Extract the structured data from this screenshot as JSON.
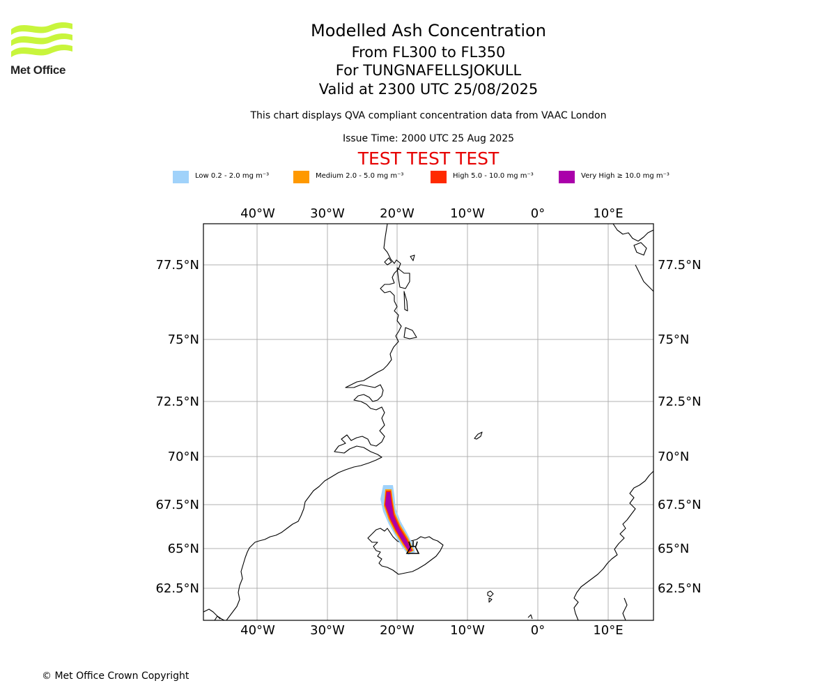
{
  "logo": {
    "text": "Met Office"
  },
  "header": {
    "title": "Modelled Ash Concentration",
    "levels": "From FL300 to FL350",
    "volcano": "For TUNGNAFELLSJOKULL",
    "valid": "Valid at 2300 UTC 25/08/2025",
    "subtitle": "This chart displays QVA compliant concentration data from VAAC London",
    "issue": "Issue Time: 2000 UTC 25 Aug 2025",
    "test_banner": "TEST TEST TEST"
  },
  "legend": [
    {
      "label": "Low 0.2 - 2.0 mg m⁻³",
      "color": "#a0d2fa"
    },
    {
      "label": "Medium 2.0 - 5.0 mg m⁻³",
      "color": "#ff9900"
    },
    {
      "label": "High 5.0 - 10.0 mg m⁻³",
      "color": "#ff2a00"
    },
    {
      "label": "Very High ≥ 10.0 mg m⁻³",
      "color": "#aa00aa"
    }
  ],
  "map": {
    "lon_labels_top": [
      "40°W",
      "30°W",
      "20°W",
      "10°W",
      "0°",
      "10°E"
    ],
    "lon_labels_bottom": [
      "40°W",
      "30°W",
      "20°W",
      "10°W",
      "0°",
      "10°E"
    ],
    "lat_labels_left": [
      "77.5°N",
      "75°N",
      "72.5°N",
      "70°N",
      "67.5°N",
      "65°N",
      "62.5°N"
    ],
    "lat_labels_right": [
      "77.5°N",
      "75°N",
      "72.5°N",
      "70°N",
      "67.5°N",
      "65°N",
      "62.5°N"
    ],
    "volcano_symbol": "volcano-icon",
    "plume_colors": {
      "low": "#a0d2fa",
      "medium": "#ff9900",
      "high": "#ff2a00",
      "very_high": "#aa00aa"
    }
  },
  "footer": {
    "copyright": "© Met Office Crown Copyright"
  }
}
